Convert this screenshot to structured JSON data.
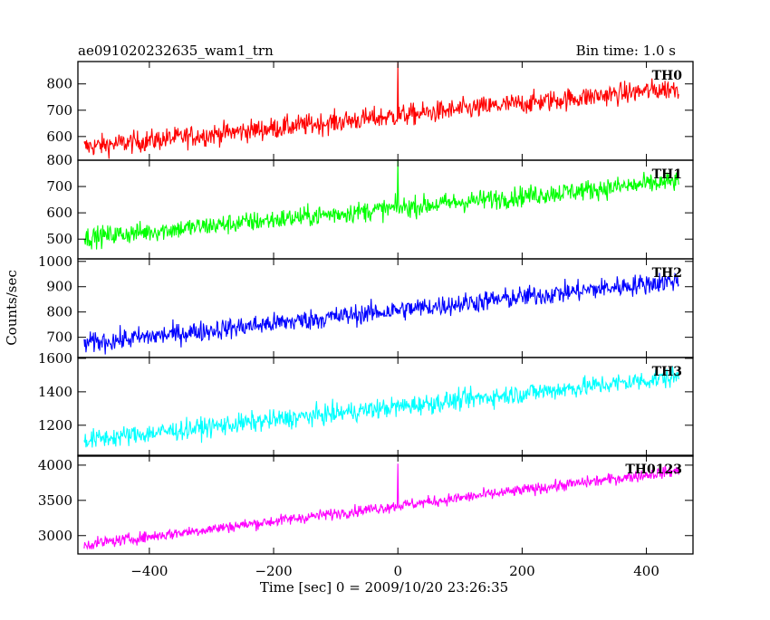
{
  "header": {
    "title": "ae091020232635_wam1_trn",
    "bin_time": "Bin time: 1.0 s"
  },
  "chart_data": {
    "type": "line",
    "title": "ae091020232635_wam1_trn",
    "xlabel": "Time [sec] 0 = 2009/10/20 23:26:35",
    "ylabel": "Counts/sec",
    "xlim": [
      -515,
      475
    ],
    "x_ticks": [
      -400,
      -200,
      0,
      200,
      400
    ],
    "x_tick_labels": [
      "−400",
      "−200",
      "0",
      "200",
      "400"
    ],
    "x_range_data": [
      -505,
      452
    ],
    "bin_time_s": 1.0,
    "grid": false,
    "panels": [
      {
        "name": "TH0",
        "color": "#ff0000",
        "ylim": [
          510,
          885
        ],
        "yticks": [
          600,
          700,
          800
        ],
        "series": {
          "start": 560,
          "end": 785,
          "noise": 38,
          "spike": {
            "x": 0,
            "y": 880
          }
        }
      },
      {
        "name": "TH1",
        "color": "#00ff00",
        "ylim": [
          425,
          800
        ],
        "yticks": [
          500,
          600,
          700,
          800
        ],
        "series": {
          "start": 505,
          "end": 720,
          "noise": 36,
          "spike": {
            "x": 0,
            "y": 800
          }
        }
      },
      {
        "name": "TH2",
        "color": "#0000ff",
        "ylim": [
          620,
          1010
        ],
        "yticks": [
          700,
          800,
          900,
          1000
        ],
        "series": {
          "start": 675,
          "end": 925,
          "noise": 38,
          "spike": null
        }
      },
      {
        "name": "TH3",
        "color": "#00ffff",
        "ylim": [
          1015,
          1605
        ],
        "yticks": [
          1200,
          1400,
          1600
        ],
        "series": {
          "start": 1110,
          "end": 1490,
          "noise": 55,
          "spike": null
        }
      },
      {
        "name": "TH0123",
        "color": "#ff00ff",
        "ylim": [
          2740,
          4140
        ],
        "yticks": [
          3000,
          3500,
          4000
        ],
        "series": {
          "start": 2870,
          "end": 3920,
          "noise": 75,
          "spike": {
            "x": 0,
            "y": 4020
          }
        }
      }
    ]
  }
}
